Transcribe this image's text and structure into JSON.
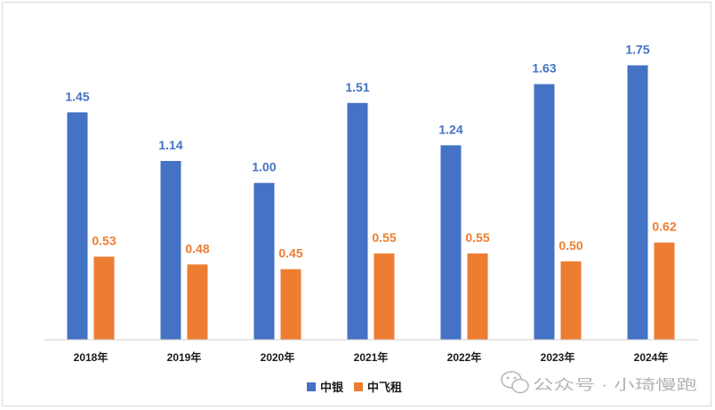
{
  "chart_data": {
    "type": "bar",
    "title": "",
    "xlabel": "",
    "ylabel": "",
    "categories": [
      "2018年",
      "2019年",
      "2020年",
      "2021年",
      "2022年",
      "2023年",
      "2024年"
    ],
    "series": [
      {
        "name": "中银",
        "color": "#4472c4",
        "values": [
          1.45,
          1.14,
          1.0,
          1.51,
          1.24,
          1.63,
          1.75
        ]
      },
      {
        "name": "中飞租",
        "color": "#ed7d31",
        "values": [
          0.53,
          0.48,
          0.45,
          0.55,
          0.55,
          0.5,
          0.62
        ]
      }
    ],
    "value_labels": [
      [
        "1.45",
        "1.14",
        "1.00",
        "1.51",
        "1.24",
        "1.63",
        "1.75"
      ],
      [
        "0.53",
        "0.48",
        "0.45",
        "0.55",
        "0.55",
        "0.50",
        "0.62"
      ]
    ],
    "ylim": [
      0,
      1.9
    ],
    "grid": false,
    "legend": "bottom-center"
  },
  "watermark": {
    "text": "公众号 · 小琦慢跑",
    "icon": "wechat-icon"
  }
}
